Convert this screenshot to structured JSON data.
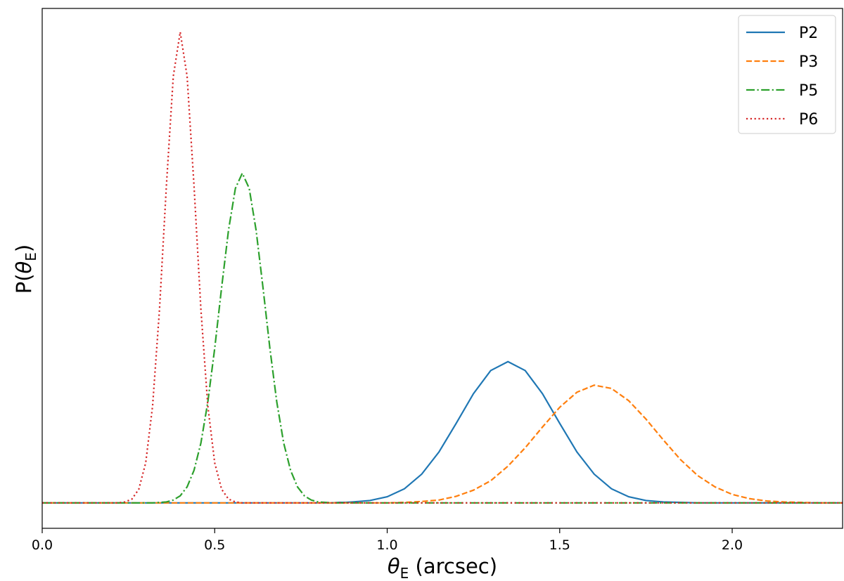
{
  "chart_data": {
    "type": "line",
    "xlabel": [
      "θ",
      "E",
      " (arcsec)"
    ],
    "ylabel": [
      "P(",
      "θ",
      "E",
      ")"
    ],
    "xlim": [
      0,
      2.32
    ],
    "ylim": [
      -0.054,
      1.05
    ],
    "xticks": [
      {
        "value": 0,
        "label": "0.0"
      },
      0.5,
      {
        "value": 1,
        "label": "1.0"
      },
      1.5,
      {
        "value": 2,
        "label": "2.0"
      }
    ],
    "legend": "upper right",
    "x": [
      0,
      0.1,
      0.2,
      0.22,
      0.24,
      0.26,
      0.28,
      0.3,
      0.32,
      0.34,
      0.36,
      0.38,
      0.4,
      0.42,
      0.44,
      0.46,
      0.48,
      0.5,
      0.52,
      0.54,
      0.56,
      0.58,
      0.6,
      0.62,
      0.64,
      0.66,
      0.68,
      0.7,
      0.72,
      0.74,
      0.76,
      0.78,
      0.8,
      0.82,
      0.84,
      0.86,
      0.88,
      0.9,
      0.95,
      1.0,
      1.05,
      1.1,
      1.15,
      1.2,
      1.25,
      1.3,
      1.35,
      1.4,
      1.45,
      1.5,
      1.55,
      1.6,
      1.65,
      1.7,
      1.75,
      1.8,
      1.85,
      1.9,
      1.95,
      2.0,
      2.05,
      2.1,
      2.15,
      2.2,
      2.25,
      2.3,
      2.32
    ],
    "series": [
      {
        "name": "P2",
        "color": "#1f77b4",
        "linestyle": "solid",
        "values": [
          0,
          0,
          0,
          0,
          0,
          0,
          0,
          0,
          0,
          0,
          0,
          0,
          0,
          0,
          0,
          0,
          0,
          0,
          0,
          0,
          0,
          0,
          0,
          0,
          0,
          0,
          0,
          0,
          0,
          0,
          0,
          0,
          0,
          0,
          0,
          0.001,
          0.001,
          0.002,
          0.005,
          0.013,
          0.03,
          0.061,
          0.108,
          0.169,
          0.232,
          0.281,
          0.3,
          0.281,
          0.232,
          0.169,
          0.108,
          0.061,
          0.03,
          0.013,
          0.005,
          0.002,
          0.001,
          0,
          0,
          0,
          0,
          0,
          0,
          0,
          0,
          0,
          0
        ]
      },
      {
        "name": "P3",
        "color": "#ff7f0e",
        "linestyle": "dashed",
        "values": [
          0,
          0,
          0,
          0,
          0,
          0,
          0,
          0,
          0,
          0,
          0,
          0,
          0,
          0,
          0,
          0,
          0,
          0,
          0,
          0,
          0,
          0,
          0,
          0,
          0,
          0,
          0,
          0,
          0,
          0,
          0,
          0,
          0,
          0,
          0,
          0,
          0,
          0,
          0,
          0,
          0.001,
          0.003,
          0.006,
          0.014,
          0.027,
          0.047,
          0.078,
          0.117,
          0.161,
          0.203,
          0.235,
          0.25,
          0.243,
          0.217,
          0.178,
          0.134,
          0.092,
          0.058,
          0.034,
          0.018,
          0.009,
          0.004,
          0.002,
          0.001,
          0,
          0,
          0
        ]
      },
      {
        "name": "P5",
        "color": "#2ca02c",
        "linestyle": "dashdot",
        "values": [
          0,
          0,
          0,
          0,
          0,
          0,
          0,
          0,
          0,
          0.001,
          0.002,
          0.006,
          0.015,
          0.034,
          0.069,
          0.127,
          0.214,
          0.328,
          0.457,
          0.579,
          0.668,
          0.7,
          0.668,
          0.579,
          0.457,
          0.328,
          0.214,
          0.127,
          0.069,
          0.034,
          0.015,
          0.006,
          0.002,
          0.001,
          0,
          0,
          0,
          0,
          0,
          0,
          0,
          0,
          0,
          0,
          0,
          0,
          0,
          0,
          0,
          0,
          0,
          0,
          0,
          0,
          0,
          0,
          0,
          0,
          0,
          0,
          0,
          0,
          0,
          0,
          0,
          0,
          0
        ]
      },
      {
        "name": "P6",
        "color": "#d62728",
        "linestyle": "dotted",
        "values": [
          0,
          0,
          0,
          0,
          0.002,
          0.008,
          0.029,
          0.085,
          0.206,
          0.411,
          0.674,
          0.906,
          1,
          0.906,
          0.674,
          0.411,
          0.206,
          0.085,
          0.029,
          0.008,
          0.002,
          0,
          0,
          0,
          0,
          0,
          0,
          0,
          0,
          0,
          0,
          0,
          0,
          0,
          0,
          0,
          0,
          0,
          0,
          0,
          0,
          0,
          0,
          0,
          0,
          0,
          0,
          0,
          0,
          0,
          0,
          0,
          0,
          0,
          0,
          0,
          0,
          0,
          0,
          0,
          0,
          0,
          0,
          0,
          0,
          0,
          0
        ]
      }
    ]
  }
}
